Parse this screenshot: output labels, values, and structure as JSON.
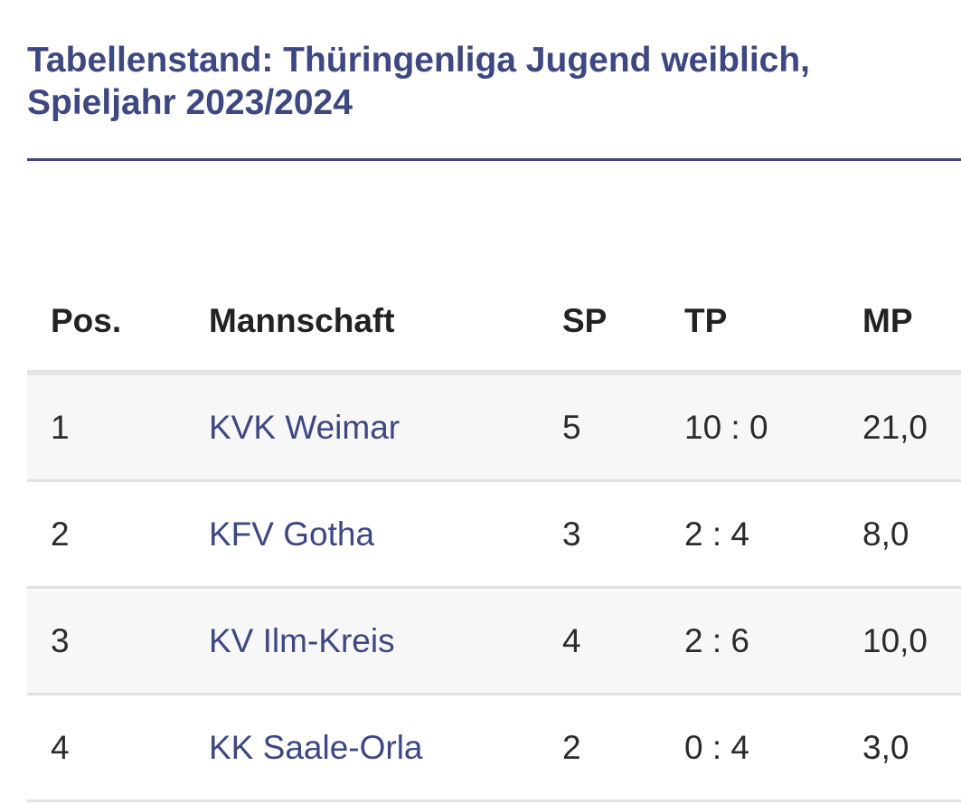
{
  "title": {
    "line1": "Tabellenstand: Thüringenliga Jugend weiblich,",
    "line2": "Spieljahr 2023/2024"
  },
  "table": {
    "headers": {
      "pos": "Pos.",
      "team": "Mannschaft",
      "sp": "SP",
      "tp": "TP",
      "mp": "MP"
    },
    "rows": [
      {
        "pos": "1",
        "team": "KVK Weimar",
        "sp": "5",
        "tp": "10 : 0",
        "mp": "21,0"
      },
      {
        "pos": "2",
        "team": "KFV Gotha",
        "sp": "3",
        "tp": "2 : 4",
        "mp": "8,0"
      },
      {
        "pos": "3",
        "team": "KV Ilm-Kreis",
        "sp": "4",
        "tp": "2 : 6",
        "mp": "10,0"
      },
      {
        "pos": "4",
        "team": "KK Saale-Orla",
        "sp": "2",
        "tp": "0 : 4",
        "mp": "3,0"
      }
    ]
  },
  "colors": {
    "accent": "#3d4781",
    "text": "#222222",
    "row_stripe": "#f7f7f7",
    "divider": "#e1e1e1"
  }
}
